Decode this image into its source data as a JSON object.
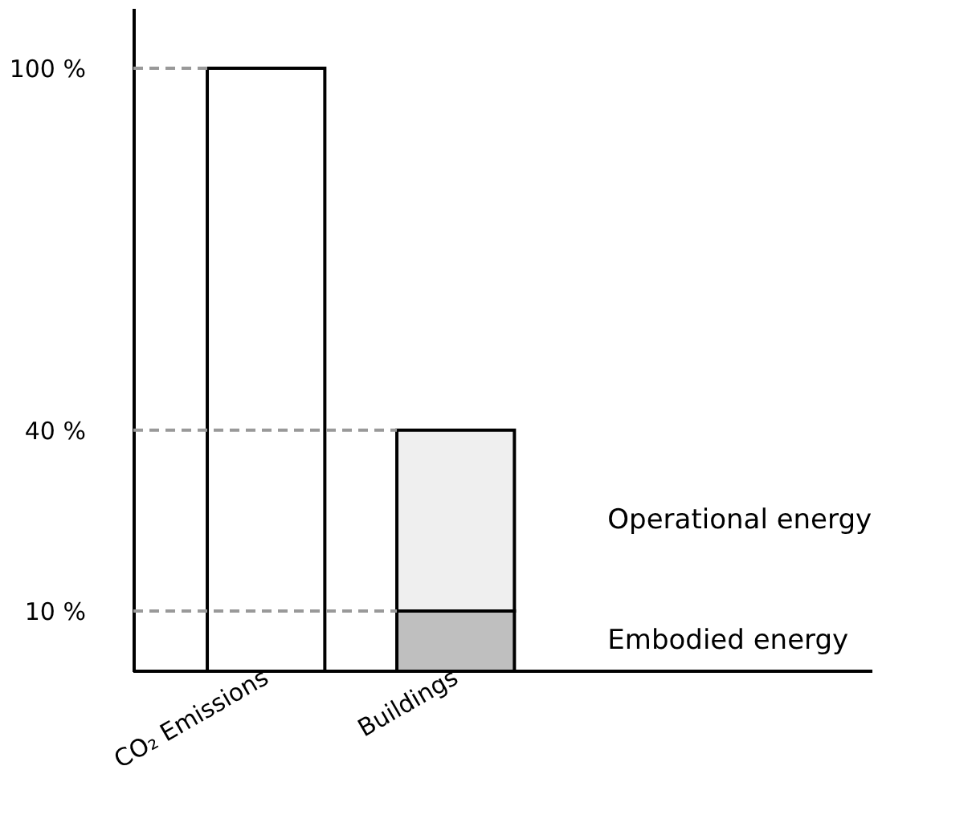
{
  "chart_data": {
    "type": "bar",
    "stacked": true,
    "categories": [
      "CO₂ Emissions",
      "Buildings"
    ],
    "series": [
      {
        "color": "#ffffff",
        "values": [
          100,
          null
        ]
      },
      {
        "name": "Embodied energy",
        "color": "#bfbfbf",
        "values": [
          null,
          10
        ]
      },
      {
        "name": "Operational energy",
        "color": "#efefef",
        "values": [
          null,
          30
        ]
      }
    ],
    "ylim": [
      0,
      110
    ],
    "yticks": [
      {
        "value": 10,
        "label": "10 %"
      },
      {
        "value": 40,
        "label": "40 %"
      },
      {
        "value": 100,
        "label": "100 %"
      }
    ],
    "ref_lines": [
      {
        "axis": "y",
        "value": 100,
        "color": "#999999",
        "line_style": "dashed"
      },
      {
        "axis": "y",
        "value": 40,
        "color": "#999999",
        "line_style": "dashed"
      },
      {
        "axis": "y",
        "value": 10,
        "color": "#999999",
        "line_style": "dashed"
      }
    ],
    "grid": false,
    "legend": false
  }
}
